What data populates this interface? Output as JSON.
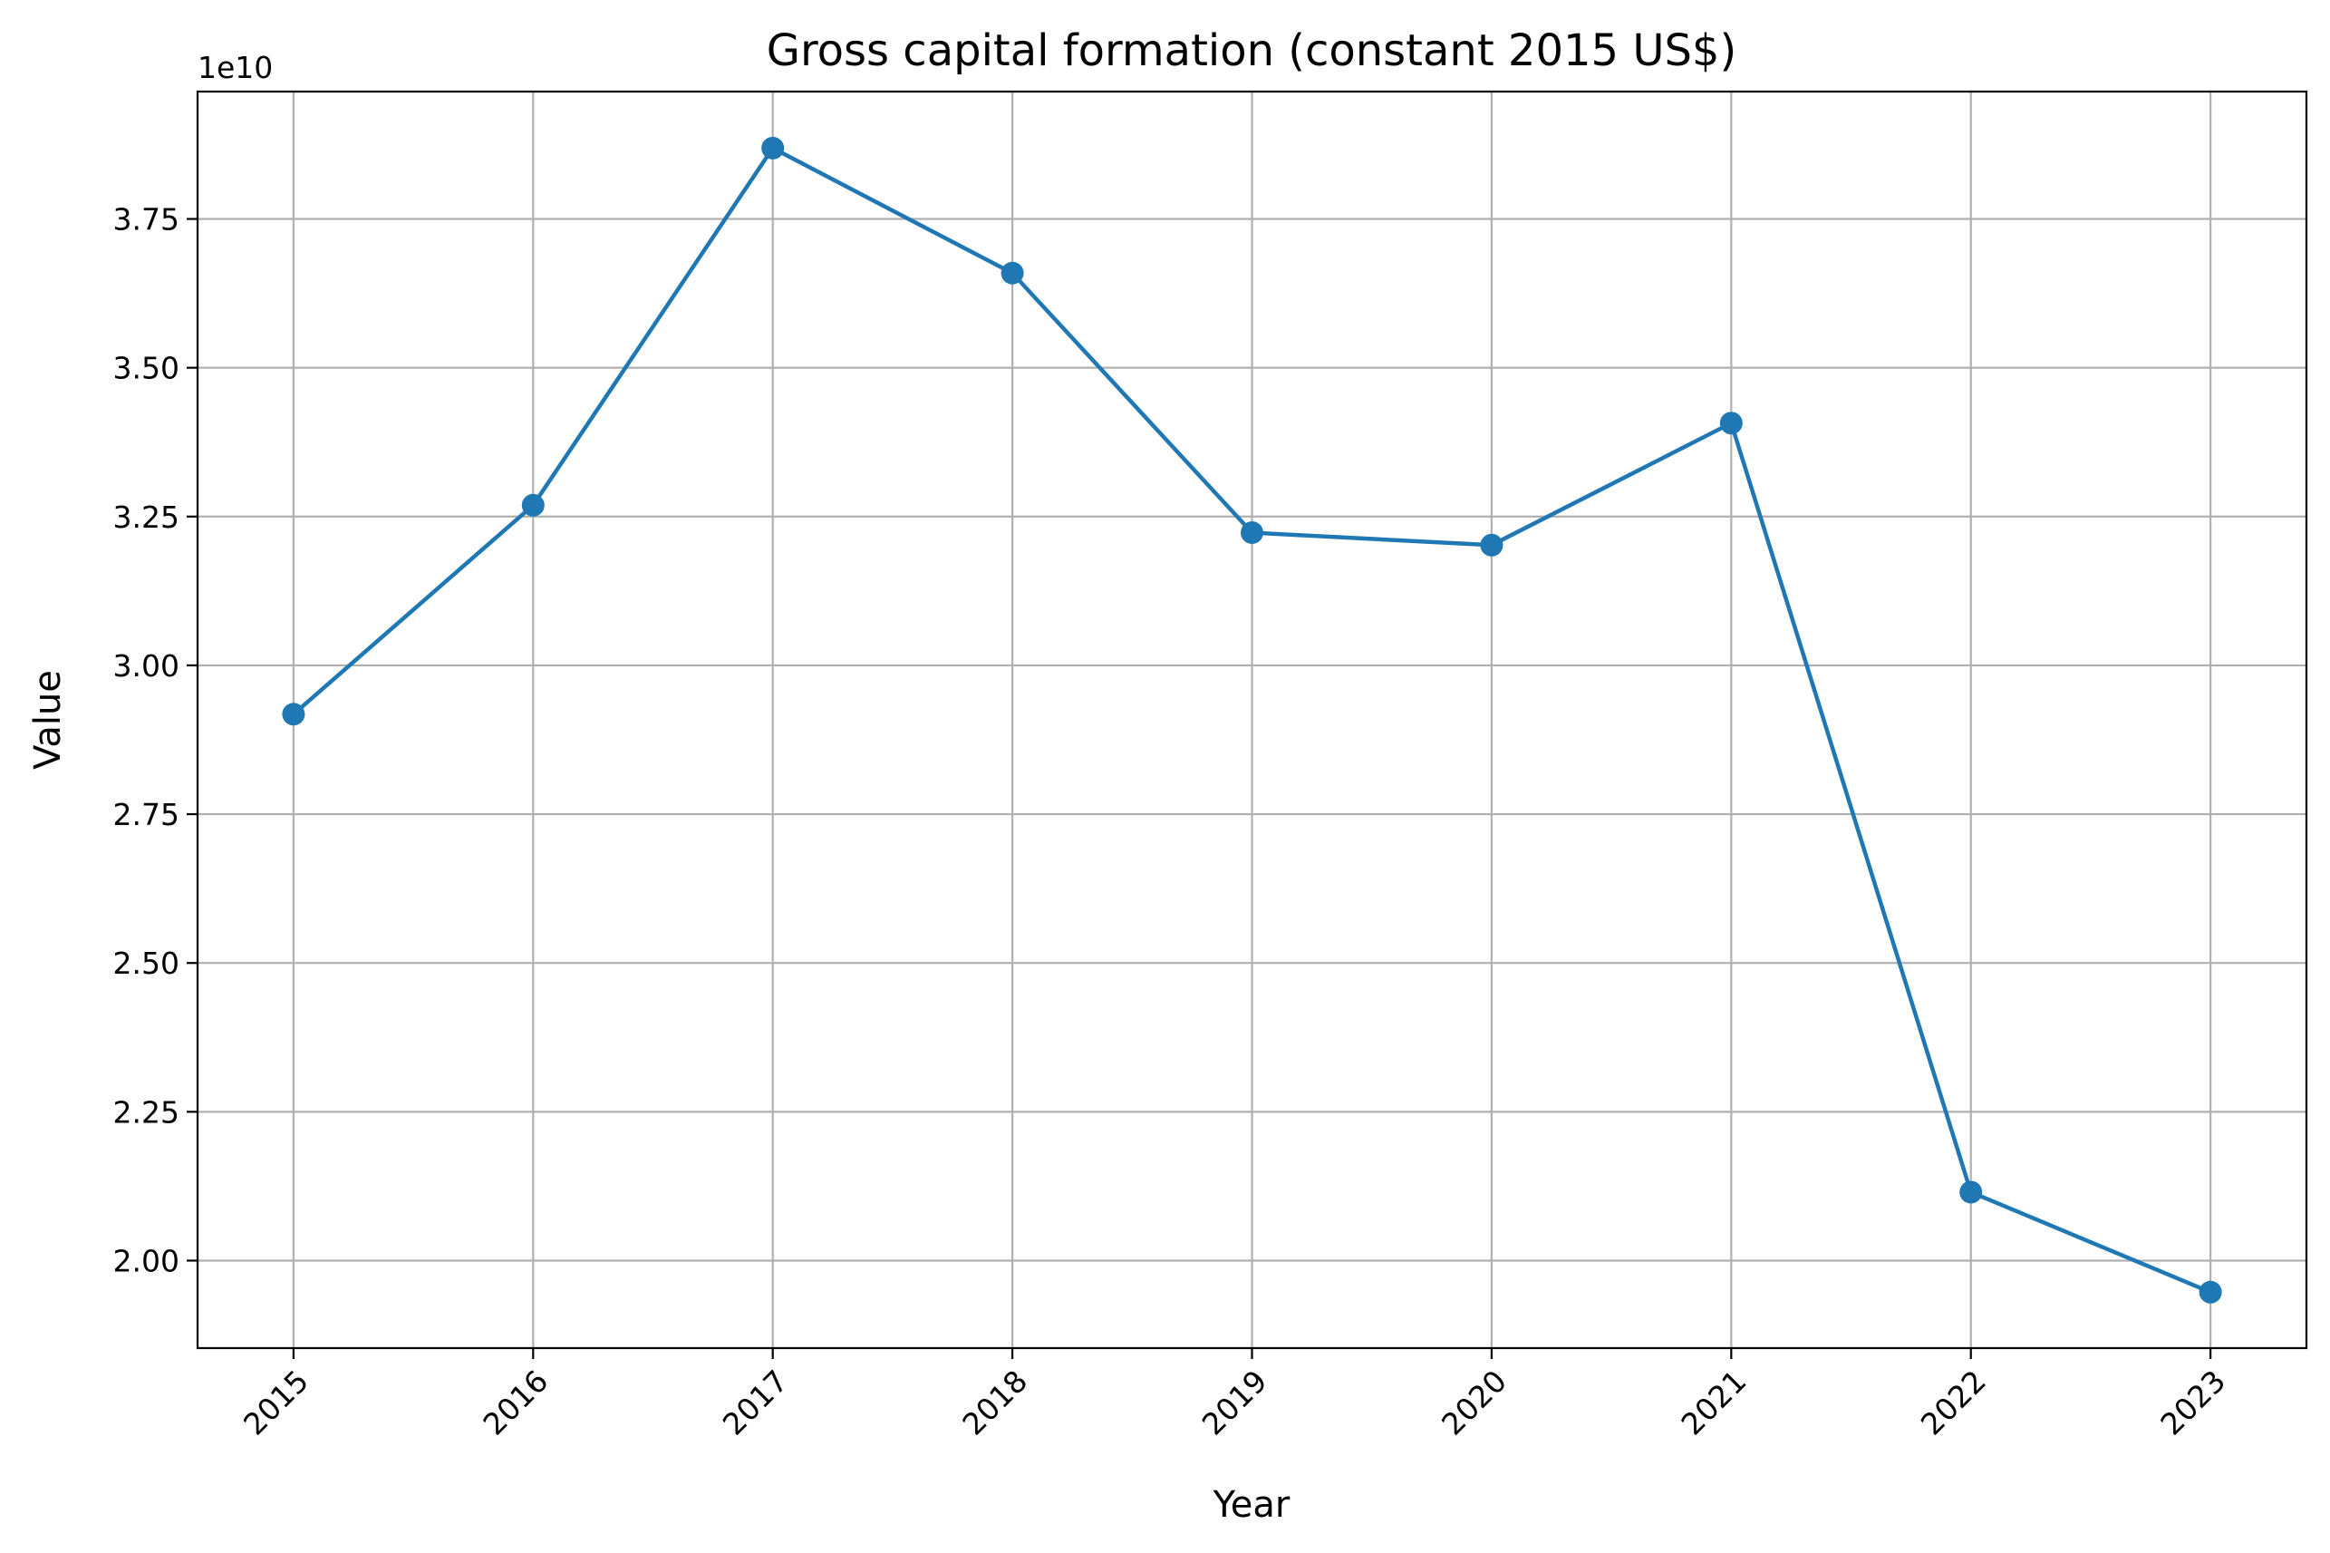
{
  "chart_data": {
    "type": "line",
    "title": "Gross capital formation (constant 2015 US$)",
    "xlabel": "Year",
    "ylabel": "Value",
    "y_offset_label": "1e10",
    "x": [
      "2015",
      "2016",
      "2017",
      "2018",
      "2019",
      "2020",
      "2021",
      "2022",
      "2023"
    ],
    "series": [
      {
        "values": [
          29180000000,
          32690000000,
          38690000000,
          36590000000,
          32230000000,
          32020000000,
          34070000000,
          21150000000,
          19470000000
        ],
        "color": "#1f77b4"
      }
    ],
    "yticks": [
      2.0,
      2.25,
      2.5,
      2.75,
      3.0,
      3.25,
      3.5,
      3.75
    ],
    "ytick_labels": [
      "2.00",
      "2.25",
      "2.50",
      "2.75",
      "3.00",
      "3.25",
      "3.50",
      "3.75"
    ],
    "ylim": [
      18530000000,
      39640000000
    ],
    "x_tick_rotation_deg": 45,
    "grid": true,
    "legend": "none"
  }
}
